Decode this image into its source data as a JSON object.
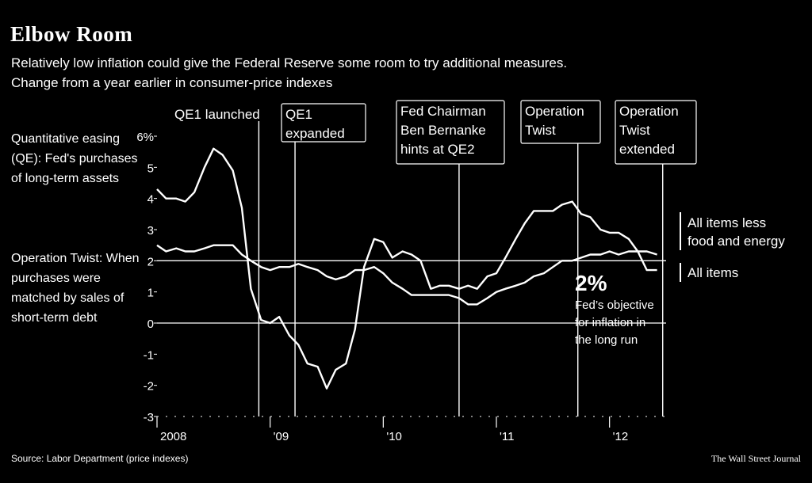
{
  "header": {
    "title": "Elbow Room",
    "subtitle": "Relatively low inflation could give the Federal Reserve some room to try additional measures.",
    "subtitle2": "Change from a year earlier in consumer-price indexes"
  },
  "notes": {
    "qe": "Quantitative easing (QE): Fed's purchases of long-term assets",
    "operation_twist": "Operation Twist: When purchases were matched by sales of short-term debt"
  },
  "footer": {
    "source": "Source: Labor Department (price indexes)",
    "publisher": "The Wall Street Journal"
  },
  "colors": {
    "background": "#000000",
    "lines": "#ffffff"
  },
  "chart_data": {
    "type": "line",
    "y_tick_labels": [
      "6%",
      "5",
      "4",
      "3",
      "2",
      "1",
      "0",
      "-1",
      "-2",
      "-3"
    ],
    "y_ticks": [
      6,
      5,
      4,
      3,
      2,
      1,
      0,
      -1,
      -2,
      -3
    ],
    "ylim": [
      -3,
      6
    ],
    "x_tick_labels": [
      {
        "label": "2008",
        "x": 2008.0
      },
      {
        "label": "'09",
        "x": 2009.0
      },
      {
        "label": "'10",
        "x": 2010.0
      },
      {
        "label": "'11",
        "x": 2011.0
      },
      {
        "label": "'12",
        "x": 2012.0
      }
    ],
    "xlim": [
      2008.0,
      2012.5
    ],
    "series": [
      {
        "name": "All items",
        "x": [
          2008.0,
          2008.08,
          2008.17,
          2008.25,
          2008.33,
          2008.42,
          2008.5,
          2008.58,
          2008.67,
          2008.75,
          2008.83,
          2008.92,
          2009.0,
          2009.08,
          2009.17,
          2009.25,
          2009.33,
          2009.42,
          2009.5,
          2009.58,
          2009.67,
          2009.75,
          2009.83,
          2009.92,
          2010.0,
          2010.08,
          2010.17,
          2010.25,
          2010.33,
          2010.42,
          2010.5,
          2010.58,
          2010.67,
          2010.75,
          2010.83,
          2010.92,
          2011.0,
          2011.08,
          2011.17,
          2011.25,
          2011.33,
          2011.42,
          2011.5,
          2011.58,
          2011.67,
          2011.75,
          2011.83,
          2011.92,
          2012.0,
          2012.08,
          2012.17,
          2012.25,
          2012.33,
          2012.42
        ],
        "values": [
          4.3,
          4.0,
          4.0,
          3.9,
          4.2,
          5.0,
          5.6,
          5.4,
          4.9,
          3.7,
          1.1,
          0.1,
          0.0,
          0.2,
          -0.4,
          -0.7,
          -1.3,
          -1.4,
          -2.1,
          -1.5,
          -1.3,
          -0.2,
          1.8,
          2.7,
          2.6,
          2.1,
          2.3,
          2.2,
          2.0,
          1.1,
          1.2,
          1.2,
          1.1,
          1.2,
          1.1,
          1.5,
          1.6,
          2.1,
          2.7,
          3.2,
          3.6,
          3.6,
          3.6,
          3.8,
          3.9,
          3.5,
          3.4,
          3.0,
          2.9,
          2.9,
          2.7,
          2.3,
          1.7,
          1.7
        ]
      },
      {
        "name": "All items less food and energy",
        "x": [
          2008.0,
          2008.08,
          2008.17,
          2008.25,
          2008.33,
          2008.42,
          2008.5,
          2008.58,
          2008.67,
          2008.75,
          2008.83,
          2008.92,
          2009.0,
          2009.08,
          2009.17,
          2009.25,
          2009.33,
          2009.42,
          2009.5,
          2009.58,
          2009.67,
          2009.75,
          2009.83,
          2009.92,
          2010.0,
          2010.08,
          2010.17,
          2010.25,
          2010.33,
          2010.42,
          2010.5,
          2010.58,
          2010.67,
          2010.75,
          2010.83,
          2010.92,
          2011.0,
          2011.08,
          2011.17,
          2011.25,
          2011.33,
          2011.42,
          2011.5,
          2011.58,
          2011.67,
          2011.75,
          2011.83,
          2011.92,
          2012.0,
          2012.08,
          2012.17,
          2012.25,
          2012.33,
          2012.42
        ],
        "values": [
          2.5,
          2.3,
          2.4,
          2.3,
          2.3,
          2.4,
          2.5,
          2.5,
          2.5,
          2.2,
          2.0,
          1.8,
          1.7,
          1.8,
          1.8,
          1.9,
          1.8,
          1.7,
          1.5,
          1.4,
          1.5,
          1.7,
          1.7,
          1.8,
          1.6,
          1.3,
          1.1,
          0.9,
          0.9,
          0.9,
          0.9,
          0.9,
          0.8,
          0.6,
          0.6,
          0.8,
          1.0,
          1.1,
          1.2,
          1.3,
          1.5,
          1.6,
          1.8,
          2.0,
          2.0,
          2.1,
          2.2,
          2.2,
          2.3,
          2.2,
          2.3,
          2.3,
          2.3,
          2.2
        ]
      }
    ],
    "reference_line": {
      "value": 2,
      "label_big": "2%",
      "label": "Fed's objective for inflation in the long run"
    },
    "series_labels": [
      {
        "text": "All items less food and energy"
      },
      {
        "text": "All items"
      }
    ],
    "events": [
      {
        "text": "QE1 launched",
        "x": 2008.9
      },
      {
        "text": "QE1 expanded",
        "x": 2009.22
      },
      {
        "text": "Fed Chairman Ben Bernanke hints at QE2",
        "x": 2010.67
      },
      {
        "text": "Operation Twist",
        "x": 2011.72
      },
      {
        "text": "Operation Twist extended",
        "x": 2012.47
      }
    ]
  }
}
